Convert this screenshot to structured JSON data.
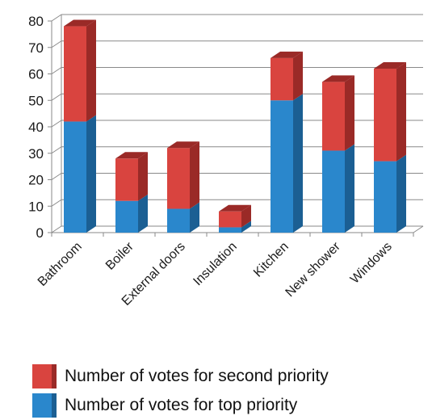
{
  "chart_data": {
    "type": "bar",
    "stacked": true,
    "categories": [
      "Bathroom",
      "Boiler",
      "External doors",
      "Insulation",
      "Kitchen",
      "New shower",
      "Windows"
    ],
    "series": [
      {
        "name": "Number of votes for top priority",
        "values": [
          42,
          12,
          9,
          2,
          50,
          31,
          27
        ],
        "color": "#2a87cc",
        "side_color": "#1b5f93"
      },
      {
        "name": "Number of votes for second priority",
        "values": [
          36,
          16,
          23,
          6,
          16,
          26,
          35
        ],
        "color": "#d9443f",
        "side_color": "#9a2a27"
      }
    ],
    "ylim": [
      0,
      80
    ],
    "yticks": [
      0,
      10,
      20,
      30,
      40,
      50,
      60,
      70,
      80
    ],
    "grid": true,
    "legend_position": "bottom",
    "legend_order": [
      "Number of votes for second priority",
      "Number of votes for top priority"
    ],
    "title": "",
    "xlabel": "",
    "ylabel": ""
  }
}
